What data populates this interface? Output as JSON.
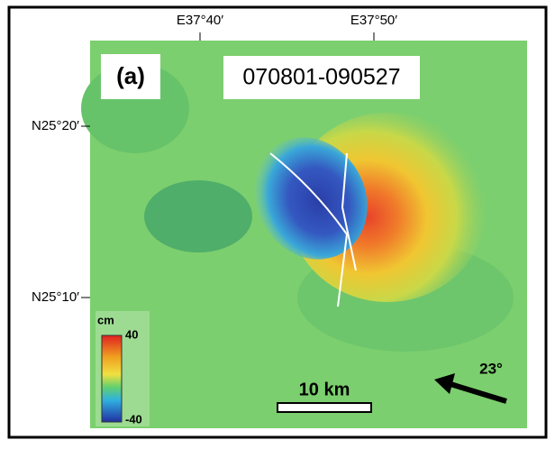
{
  "panel_label": "(a)",
  "date_range": "070801-090527",
  "longitude_labels": [
    "E37°40′",
    "E37°50′"
  ],
  "latitude_labels": [
    "N25°20′",
    "N25°10′"
  ],
  "colorbar": {
    "unit": "cm",
    "max": 40,
    "min": -40
  },
  "scale_bar": "10 km",
  "look_direction": "23°"
}
